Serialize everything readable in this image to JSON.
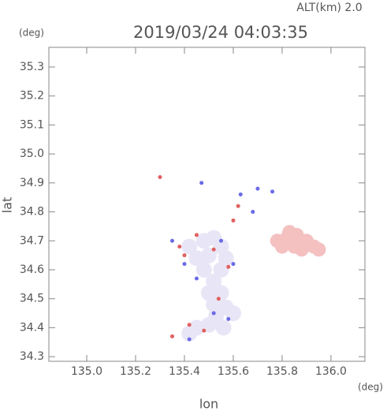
{
  "chart_data": {
    "type": "scatter",
    "title": "2019/03/24 04:03:35",
    "annotation": "ALT(km) 2.0",
    "x_label": "lon",
    "y_label": "lat",
    "x_unit": "(deg)",
    "y_unit": "(deg)",
    "xlim": [
      134.845,
      136.139
    ],
    "ylim": [
      34.284,
      35.368
    ],
    "xticks": [
      {
        "value": 135,
        "label": "135.0"
      },
      135.2,
      135.4,
      135.6,
      135.8,
      {
        "value": 136,
        "label": "136.0"
      }
    ],
    "yticks": [
      34.3,
      34.4,
      34.5,
      34.6,
      34.7,
      34.8,
      34.9,
      {
        "value": 35,
        "label": "35.0"
      },
      35.1,
      35.2,
      35.3
    ],
    "series": [
      {
        "color": "#f4c0c0",
        "x": [
          135.78,
          135.82,
          135.86,
          135.9,
          135.93,
          135.8,
          135.85,
          135.88,
          135.95,
          135.83
        ],
        "values": [
          34.7,
          34.71,
          34.72,
          34.7,
          34.68,
          34.68,
          34.68,
          34.67,
          34.67,
          34.73
        ]
      },
      {
        "color": "#e8e6f6",
        "x": [
          135.42,
          135.48,
          135.52,
          135.55,
          135.45,
          135.5,
          135.57,
          135.48,
          135.55,
          135.52,
          135.5,
          135.55,
          135.52,
          135.57,
          135.53,
          135.5,
          135.45,
          135.42,
          135.56,
          135.6
        ],
        "values": [
          34.68,
          34.7,
          34.71,
          34.68,
          34.64,
          34.65,
          34.64,
          34.6,
          34.6,
          34.56,
          34.52,
          34.52,
          34.48,
          34.47,
          34.44,
          34.41,
          34.4,
          34.38,
          34.4,
          34.45
        ]
      },
      {
        "color": "#e06060",
        "x": [
          135.35,
          135.42,
          135.45,
          135.4,
          135.3,
          135.58,
          135.54,
          135.6,
          135.62,
          135.48,
          135.38,
          135.52
        ],
        "values": [
          34.37,
          34.41,
          34.72,
          34.65,
          34.92,
          34.61,
          34.5,
          34.77,
          34.82,
          34.39,
          34.68,
          34.67
        ]
      },
      {
        "color": "#6a6ae8",
        "x": [
          135.4,
          135.47,
          135.63,
          135.7,
          135.6,
          135.45,
          135.58,
          135.68,
          135.42,
          135.35,
          135.55,
          135.76,
          135.52
        ],
        "values": [
          34.62,
          34.9,
          34.86,
          34.88,
          34.62,
          34.57,
          34.43,
          34.8,
          34.36,
          34.7,
          34.7,
          34.87,
          34.45
        ]
      }
    ]
  }
}
